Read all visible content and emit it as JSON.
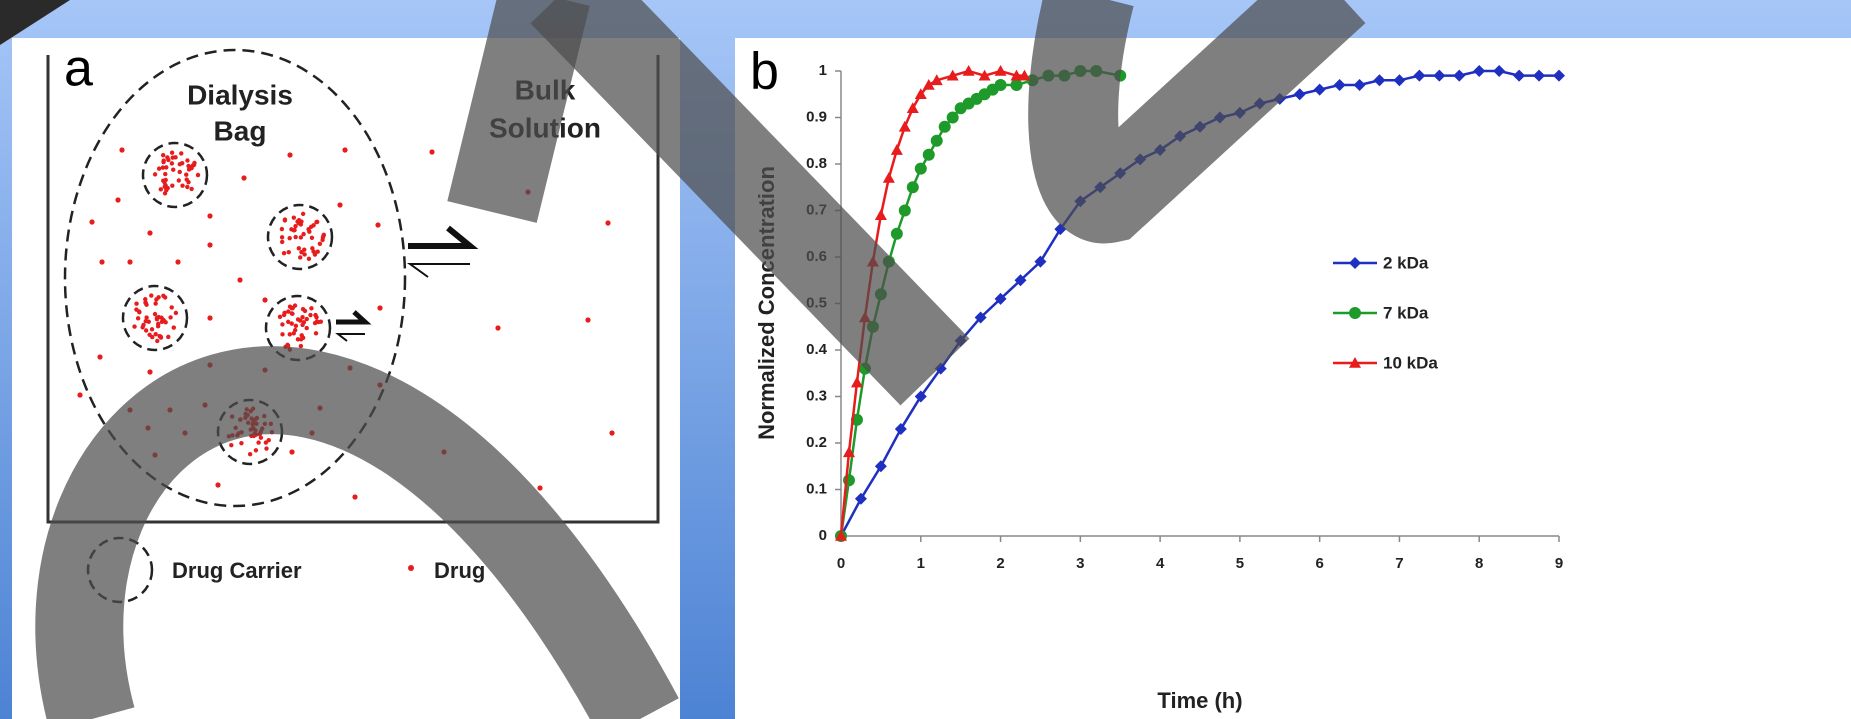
{
  "panel_a": {
    "label": "a",
    "bag_label_lines": [
      "Dialysis",
      "Bag"
    ],
    "bulk_label_lines": [
      "Bulk",
      "Solution"
    ],
    "legend": [
      "Drug Carrier",
      "Drug"
    ]
  },
  "chart_data": {
    "type": "line",
    "label": "b",
    "x_label": "Time (h)",
    "y_label": "Normalized Concentration",
    "xlim": [
      0,
      9
    ],
    "ylim": [
      0,
      1
    ],
    "xticks": [
      0,
      1,
      2,
      3,
      4,
      5,
      6,
      7,
      8,
      9
    ],
    "yticks": [
      0,
      0.1,
      0.2,
      0.3,
      0.4,
      0.5,
      0.6,
      0.7,
      0.8,
      0.9,
      1
    ],
    "legend": "right",
    "series": [
      {
        "name": "2 kDa",
        "color": "#1f2fbf",
        "marker": "diamond",
        "x": [
          0,
          0.25,
          0.5,
          0.75,
          1,
          1.25,
          1.5,
          1.75,
          2,
          2.25,
          2.5,
          2.75,
          3,
          3.25,
          3.5,
          3.75,
          4,
          4.25,
          4.5,
          4.75,
          5,
          5.25,
          5.5,
          5.75,
          6,
          6.25,
          6.5,
          6.75,
          7,
          7.25,
          7.5,
          7.75,
          8,
          8.25,
          8.5,
          8.75,
          9
        ],
        "values": [
          0,
          0.08,
          0.15,
          0.23,
          0.3,
          0.36,
          0.42,
          0.47,
          0.51,
          0.55,
          0.59,
          0.66,
          0.72,
          0.75,
          0.78,
          0.81,
          0.83,
          0.86,
          0.88,
          0.9,
          0.91,
          0.93,
          0.94,
          0.95,
          0.96,
          0.97,
          0.97,
          0.98,
          0.98,
          0.99,
          0.99,
          0.99,
          1,
          1,
          0.99,
          0.99,
          0.99
        ]
      },
      {
        "name": "7 kDa",
        "color": "#1e9a2a",
        "marker": "circle",
        "x": [
          0,
          0.1,
          0.2,
          0.3,
          0.4,
          0.5,
          0.6,
          0.7,
          0.8,
          0.9,
          1,
          1.1,
          1.2,
          1.3,
          1.4,
          1.5,
          1.6,
          1.7,
          1.8,
          1.9,
          2,
          2.2,
          2.4,
          2.6,
          2.8,
          3,
          3.2,
          3.5
        ],
        "values": [
          0,
          0.12,
          0.25,
          0.36,
          0.45,
          0.52,
          0.59,
          0.65,
          0.7,
          0.75,
          0.79,
          0.82,
          0.85,
          0.88,
          0.9,
          0.92,
          0.93,
          0.94,
          0.95,
          0.96,
          0.97,
          0.97,
          0.98,
          0.99,
          0.99,
          1,
          1,
          0.99
        ]
      },
      {
        "name": "10 kDa",
        "color": "#e81c1c",
        "marker": "triangle",
        "x": [
          0,
          0.1,
          0.2,
          0.3,
          0.4,
          0.5,
          0.6,
          0.7,
          0.8,
          0.9,
          1,
          1.1,
          1.2,
          1.4,
          1.6,
          1.8,
          2,
          2.2,
          2.3
        ],
        "values": [
          0,
          0.18,
          0.33,
          0.47,
          0.59,
          0.69,
          0.77,
          0.83,
          0.88,
          0.92,
          0.95,
          0.97,
          0.98,
          0.99,
          1,
          0.99,
          1,
          0.99,
          0.99
        ]
      }
    ]
  }
}
